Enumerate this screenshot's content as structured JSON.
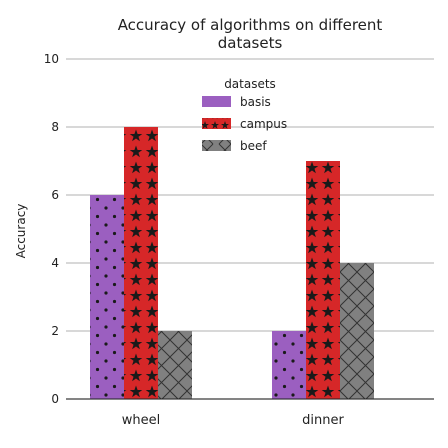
{
  "chart_data": {
    "type": "bar",
    "title": "Accuracy of algorithms on different datasets",
    "title_lines": [
      "Accuracy of algorithms on different",
      "datasets"
    ],
    "xlabel": "",
    "ylabel": "Accuracy",
    "categories": [
      "wheel",
      "dinner"
    ],
    "ylim": [
      0,
      10
    ],
    "yticks": [
      0,
      2,
      4,
      6,
      8,
      10
    ],
    "grid": "horizontal",
    "legend": {
      "title": "datasets",
      "placement": "top-center"
    },
    "series": [
      {
        "name": "basis",
        "values": [
          6,
          2
        ],
        "color": "#9b5fc0",
        "pattern": "dots"
      },
      {
        "name": "campus",
        "values": [
          8,
          7
        ],
        "color": "#d62728",
        "pattern": "stars"
      },
      {
        "name": "beef",
        "values": [
          2,
          4
        ],
        "color": "#808080",
        "pattern": "crosshatch"
      }
    ]
  }
}
